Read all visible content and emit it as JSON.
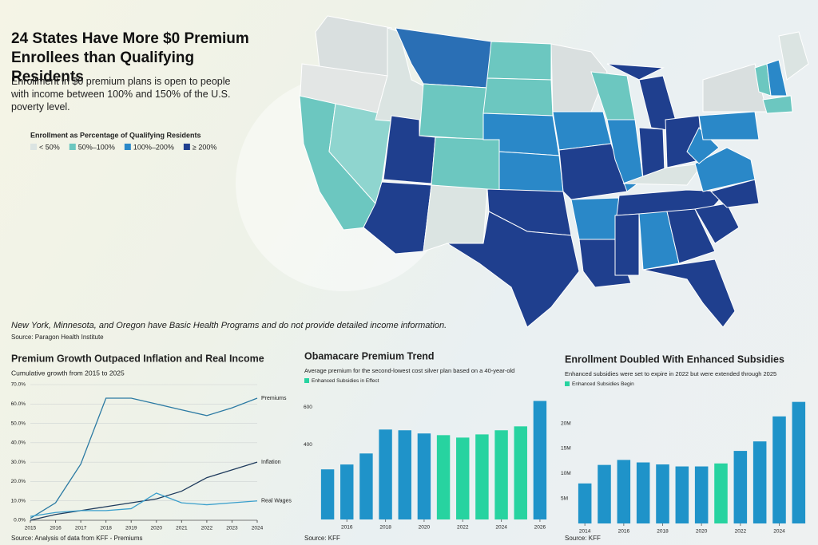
{
  "header": {
    "title": "24 States Have More $0 Premium Enrollees than Qualifying Residents",
    "subtitle": "Enrollment in $0 premium plans is open to people with income between 100% and 150% of the U.S. poverty level."
  },
  "map_legend": {
    "title": "Enrollment as Percentage of Qualifying Residents",
    "items": [
      {
        "label": "< 50%",
        "color": "#dbe4e2"
      },
      {
        "label": "50%–100%",
        "color": "#6cc7c0"
      },
      {
        "label": "100%–200%",
        "color": "#2a88c8"
      },
      {
        "label": "≥ 200%",
        "color": "#1f3f8e"
      }
    ]
  },
  "note": "New York, Minnesota, and Oregon have Basic Health Programs and do not provide detailed income information.",
  "source": "Source: Paragon Health Institute",
  "chart_data": [
    {
      "type": "line",
      "title": "Premium Growth Outpaced Inflation and Real Income",
      "subtitle": "Cumulative growth from 2015 to 2025",
      "x": [
        2015,
        2016,
        2017,
        2018,
        2019,
        2020,
        2021,
        2022,
        2023,
        2024
      ],
      "xlim": [
        2015,
        2024
      ],
      "xticks": [
        2015,
        2016,
        2017,
        2018,
        2019,
        2020,
        2021,
        2022,
        2023,
        2024
      ],
      "ylim": [
        0,
        70
      ],
      "yticks": [
        {
          "value": 0,
          "label": "0.0%"
        },
        {
          "value": 10,
          "label": "10.0%"
        },
        {
          "value": 20,
          "label": "20.0%"
        },
        {
          "value": 30,
          "label": "30.0%"
        },
        {
          "value": 40,
          "label": "40.0%"
        },
        {
          "value": 50,
          "label": "50.0%"
        },
        {
          "value": 60,
          "label": "60.0%"
        },
        {
          "value": 70,
          "label": "70.0%"
        }
      ],
      "grid": true,
      "series": [
        {
          "name": "Premiums",
          "color": "#2b7aa3",
          "values": [
            1,
            9,
            29,
            63,
            63,
            60,
            57,
            54,
            58,
            63
          ]
        },
        {
          "name": "Inflation",
          "color": "#1e3a5c",
          "values": [
            0,
            3,
            5,
            7,
            9,
            11,
            15,
            22,
            26,
            30
          ]
        },
        {
          "name": "Real Wages",
          "color": "#3a9fcc",
          "values": [
            2,
            4,
            5,
            5,
            6,
            14,
            9,
            8,
            9,
            10
          ]
        }
      ],
      "source": "Source: Analysis of data from KFF - Premiums"
    },
    {
      "type": "bar",
      "title": "Obamacare Premium Trend",
      "subtitle": "Average premium for the second-lowest cost silver plan based on a 40-year-old",
      "legend": [
        {
          "label": "Enhanced Subsidies in Effect",
          "color": "#27d3a0"
        }
      ],
      "categories": [
        null,
        "2016",
        null,
        "2018",
        null,
        "2020",
        null,
        "2022",
        null,
        "2024",
        null,
        "2026"
      ],
      "values": [
        268,
        294,
        353,
        481,
        477,
        460,
        451,
        438,
        455,
        477,
        498,
        634
      ],
      "colors": [
        "#1f93c9",
        "#1f93c9",
        "#1f93c9",
        "#1f93c9",
        "#1f93c9",
        "#1f93c9",
        "#27d3a0",
        "#27d3a0",
        "#27d3a0",
        "#27d3a0",
        "#27d3a0",
        "#1f93c9"
      ],
      "ylim": [
        0,
        700
      ],
      "yticks": [
        400,
        600
      ],
      "source": "Source: KFF"
    },
    {
      "type": "bar",
      "title": "Enrollment Doubled With Enhanced Subsidies",
      "subtitle": "Enhanced subsidies were set to expire in 2022 but were extended through 2025",
      "legend": [
        {
          "label": "Enhanced Subsidies Begin",
          "color": "#27d3a0"
        }
      ],
      "categories": [
        "2014",
        null,
        "2016",
        null,
        "2018",
        null,
        "2020",
        null,
        "2022",
        null,
        "2024",
        null
      ],
      "values": [
        8000000,
        11700000,
        12700000,
        12200000,
        11800000,
        11400000,
        11400000,
        12000000,
        14500000,
        16400000,
        21400000,
        24300000
      ],
      "colors": [
        "#1f93c9",
        "#1f93c9",
        "#1f93c9",
        "#1f93c9",
        "#1f93c9",
        "#1f93c9",
        "#1f93c9",
        "#27d3a0",
        "#1f93c9",
        "#1f93c9",
        "#1f93c9",
        "#1f93c9"
      ],
      "ylim": [
        0,
        26000000
      ],
      "yticks": [
        {
          "value": 5000000,
          "label": "5M"
        },
        {
          "value": 10000000,
          "label": "10M"
        },
        {
          "value": 15000000,
          "label": "15M"
        },
        {
          "value": 20000000,
          "label": "20M"
        }
      ],
      "source": "Source: KFF"
    }
  ]
}
